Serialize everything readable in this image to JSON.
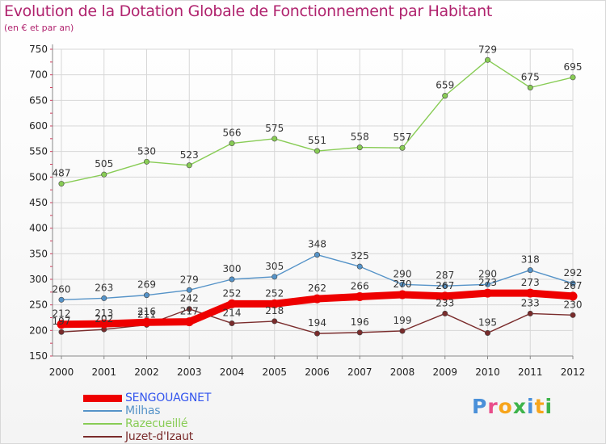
{
  "title": "Evolution de la Dotation Globale de Fonctionnement par Habitant",
  "subtitle": "(en € et par an)",
  "logo": {
    "text": "Proxiti",
    "letter_colors": [
      "#4a90d9",
      "#e94d8a",
      "#f7a51c",
      "#3db34a",
      "#4a90d9",
      "#f7a51c",
      "#3db34a"
    ]
  },
  "chart_data": {
    "type": "line",
    "x": [
      "2000",
      "2001",
      "2002",
      "2003",
      "2004",
      "2005",
      "2006",
      "2007",
      "2008",
      "2009",
      "2010",
      "2011",
      "2012"
    ],
    "ylim": [
      150,
      750
    ],
    "yticks": [
      "150",
      "200",
      "250",
      "300",
      "350",
      "400",
      "450",
      "500",
      "550",
      "600",
      "650",
      "700",
      "750"
    ],
    "grid": true,
    "legend_position": "bottom-left",
    "series": [
      {
        "name": "SENGOUAGNET",
        "color": "#ee0000",
        "label_color": "#3355ee",
        "values": [
          212,
          213,
          216,
          217,
          252,
          252,
          262,
          266,
          270,
          267,
          273,
          273,
          267
        ],
        "labels": [
          "212",
          "213",
          "216",
          "217",
          "252",
          "252",
          "262",
          "266",
          "270",
          "267",
          "273",
          "273",
          "267"
        ]
      },
      {
        "name": "Milhas",
        "color": "#5593c8",
        "label_color": "#5593c8",
        "values": [
          260,
          263,
          269,
          279,
          300,
          305,
          348,
          325,
          290,
          287,
          290,
          318,
          292
        ],
        "labels": [
          "260",
          "263",
          "269",
          "279",
          "300",
          "305",
          "348",
          "325",
          "290",
          "287",
          "290",
          "318",
          "292"
        ]
      },
      {
        "name": "Razecueillé",
        "color": "#88cc55",
        "label_color": "#88cc55",
        "values": [
          487,
          505,
          530,
          523,
          566,
          575,
          551,
          558,
          557,
          659,
          729,
          675,
          695
        ],
        "labels": [
          "487",
          "505",
          "530",
          "523",
          "566",
          "575",
          "551",
          "558",
          "557",
          "659",
          "729",
          "675",
          "695"
        ]
      },
      {
        "name": "Juzet-d'Izaut",
        "color": "#7a2c2c",
        "label_color": "#7a2c2c",
        "values": [
          197,
          202,
          211,
          242,
          214,
          218,
          194,
          196,
          199,
          233,
          195,
          233,
          230
        ],
        "labels": [
          "197",
          "202",
          "211",
          "242",
          "214",
          "218",
          "194",
          "196",
          "199",
          "233",
          "195",
          "233",
          "230"
        ]
      }
    ]
  }
}
